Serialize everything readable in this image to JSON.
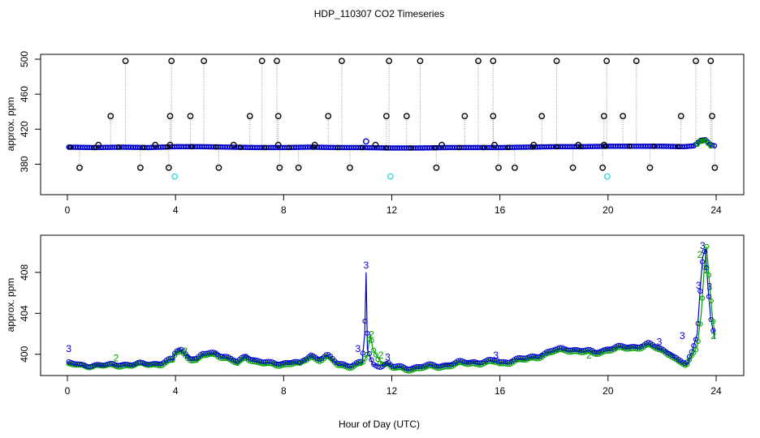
{
  "figure": {
    "title": "HDP_110307  CO2 Timeseries",
    "xlabel": "Hour of Day (UTC)"
  },
  "colors": {
    "axis": "#000000",
    "outlier": "#000000",
    "series_blue": "#0000cc",
    "series_green": "#00a000",
    "series_cyan": "#40d8d8",
    "droplines": "#9a9a9a"
  },
  "chart_data": [
    {
      "type": "scatter",
      "ylabel": "approx. ppm",
      "xlim": [
        0,
        24
      ],
      "ylim": [
        360,
        500
      ],
      "x_ticks": [
        "0",
        "4",
        "8",
        "12",
        "16",
        "20",
        "24"
      ],
      "x_tick_values": [
        0,
        4,
        8,
        12,
        16,
        20,
        24
      ],
      "y_ticks": [
        "380",
        "420",
        "460",
        "500"
      ],
      "y_tick_values": [
        380,
        420,
        460,
        500
      ],
      "grid": false,
      "baseline": [
        [
          0,
          399.5
        ],
        [
          1,
          399
        ],
        [
          2,
          399.5
        ],
        [
          3,
          399
        ],
        [
          4,
          400
        ],
        [
          5,
          400
        ],
        [
          6,
          399.5
        ],
        [
          7,
          399
        ],
        [
          8,
          399
        ],
        [
          9,
          399.5
        ],
        [
          10,
          399
        ],
        [
          11,
          399
        ],
        [
          12,
          398.5
        ],
        [
          13,
          398.5
        ],
        [
          14,
          399
        ],
        [
          15,
          399
        ],
        [
          16,
          399
        ],
        [
          17,
          399.5
        ],
        [
          18,
          400
        ],
        [
          19,
          400
        ],
        [
          20,
          400.5
        ],
        [
          21,
          400.5
        ],
        [
          22,
          400.5
        ],
        [
          22.8,
          400
        ],
        [
          23.2,
          401
        ],
        [
          23.4,
          407
        ],
        [
          23.6,
          408
        ],
        [
          23.8,
          402
        ],
        [
          23.95,
          401
        ]
      ],
      "outliers_high": [
        2.15,
        3.85,
        5.05,
        7.2,
        7.75,
        10.15,
        11.9,
        13.05,
        15.2,
        15.75,
        18.1,
        19.95,
        21.05,
        23.25,
        23.8
      ],
      "outliers_mid": [
        1.6,
        3.8,
        4.55,
        6.75,
        7.8,
        9.65,
        11.8,
        12.55,
        14.7,
        15.75,
        17.55,
        19.85,
        20.55,
        22.7,
        23.85
      ],
      "outliers_low": [
        0.45,
        2.7,
        3.75,
        5.6,
        7.85,
        8.55,
        10.45,
        13.65,
        15.95,
        16.55,
        18.7,
        19.8,
        21.55,
        23.95
      ],
      "outliers_small": [
        1.15,
        3.25,
        3.8,
        6.15,
        7.8,
        9.15,
        11.4,
        13.85,
        15.8,
        17.25,
        18.9,
        19.85
      ],
      "blue_peak": {
        "x": 11.05,
        "y": 406
      },
      "cyan_points": [
        [
          3.97,
          366
        ],
        [
          11.95,
          366
        ],
        [
          19.97,
          366
        ]
      ]
    },
    {
      "type": "line",
      "ylabel": "approx. ppm",
      "xlim": [
        0,
        24
      ],
      "ylim": [
        398,
        411
      ],
      "x_ticks": [
        "0",
        "4",
        "8",
        "12",
        "16",
        "20",
        "24"
      ],
      "x_tick_values": [
        0,
        4,
        8,
        12,
        16,
        20,
        24
      ],
      "y_ticks": [
        "400",
        "404",
        "408"
      ],
      "y_tick_values": [
        400,
        404,
        408
      ],
      "grid": false,
      "series": [
        {
          "values": [
            [
              0,
              399.2
            ],
            [
              0.5,
              398.9
            ],
            [
              1,
              399
            ],
            [
              1.5,
              398.9
            ],
            [
              2,
              399.1
            ],
            [
              2.5,
              399.0
            ],
            [
              3,
              399.1
            ],
            [
              3.5,
              399.2
            ],
            [
              3.9,
              399.5
            ],
            [
              4,
              400.3
            ],
            [
              4.2,
              400.5
            ],
            [
              4.5,
              399.8
            ],
            [
              4.8,
              399.5
            ],
            [
              5,
              400.0
            ],
            [
              5.5,
              400.2
            ],
            [
              6,
              399.6
            ],
            [
              6.3,
              399.2
            ],
            [
              6.6,
              399.9
            ],
            [
              7,
              399.4
            ],
            [
              7.5,
              399.1
            ],
            [
              8,
              399.2
            ],
            [
              8.4,
              399.3
            ],
            [
              8.6,
              399.0
            ],
            [
              9,
              400.0
            ],
            [
              9.3,
              399.6
            ],
            [
              9.6,
              399.9
            ],
            [
              10,
              399.1
            ],
            [
              10.5,
              399.0
            ],
            [
              10.9,
              399.2
            ],
            [
              11,
              402
            ],
            [
              11.05,
              408
            ],
            [
              11.1,
              400.5
            ],
            [
              11.3,
              399.0
            ],
            [
              11.6,
              398.9
            ],
            [
              11.9,
              399.1
            ],
            [
              12,
              398.8
            ],
            [
              12.5,
              398.7
            ],
            [
              13,
              398.8
            ],
            [
              13.5,
              398.9
            ],
            [
              14,
              399.0
            ],
            [
              14.5,
              399.2
            ],
            [
              15,
              399.3
            ],
            [
              15.5,
              399.3
            ],
            [
              15.9,
              399.4
            ],
            [
              16,
              399.2
            ],
            [
              16.5,
              399.5
            ],
            [
              17,
              399.6
            ],
            [
              17.5,
              400.0
            ],
            [
              18,
              400.4
            ],
            [
              18.5,
              400.6
            ],
            [
              19,
              400.4
            ],
            [
              19.5,
              400.2
            ],
            [
              20,
              400.6
            ],
            [
              20.5,
              400.7
            ],
            [
              21,
              400.8
            ],
            [
              21.5,
              401.0
            ],
            [
              22,
              400.5
            ],
            [
              22.3,
              400.2
            ],
            [
              22.6,
              399.4
            ],
            [
              22.9,
              399.0
            ],
            [
              23.1,
              400.2
            ],
            [
              23.3,
              402
            ],
            [
              23.4,
              406
            ],
            [
              23.5,
              409.5
            ],
            [
              23.6,
              410.3
            ],
            [
              23.7,
              406.5
            ],
            [
              23.8,
              403.5
            ],
            [
              23.95,
              401.5
            ]
          ]
        },
        {
          "values": [
            [
              0,
              399.0
            ],
            [
              0.5,
              398.8
            ],
            [
              1,
              398.9
            ],
            [
              1.5,
              398.8
            ],
            [
              2,
              398.9
            ],
            [
              2.5,
              398.9
            ],
            [
              3,
              399.0
            ],
            [
              3.5,
              399.0
            ],
            [
              3.9,
              399.3
            ],
            [
              4,
              400.1
            ],
            [
              4.2,
              400.3
            ],
            [
              4.5,
              399.6
            ],
            [
              4.8,
              399.3
            ],
            [
              5,
              399.8
            ],
            [
              5.5,
              400.0
            ],
            [
              6,
              399.4
            ],
            [
              6.3,
              399.0
            ],
            [
              6.6,
              399.7
            ],
            [
              7,
              399.2
            ],
            [
              7.5,
              398.9
            ],
            [
              8,
              399.0
            ],
            [
              8.4,
              399.1
            ],
            [
              8.6,
              398.9
            ],
            [
              9,
              399.8
            ],
            [
              9.3,
              399.4
            ],
            [
              9.6,
              399.7
            ],
            [
              10,
              398.9
            ],
            [
              10.5,
              398.8
            ],
            [
              10.9,
              399.0
            ],
            [
              11,
              399.5
            ],
            [
              11.1,
              400.0
            ],
            [
              11.2,
              402.0
            ],
            [
              11.3,
              400.5
            ],
            [
              11.6,
              399.2
            ],
            [
              11.9,
              398.9
            ],
            [
              12,
              398.6
            ],
            [
              12.5,
              398.5
            ],
            [
              13,
              398.6
            ],
            [
              13.5,
              398.7
            ],
            [
              14,
              398.8
            ],
            [
              14.5,
              399.0
            ],
            [
              15,
              399.1
            ],
            [
              15.5,
              399.1
            ],
            [
              15.9,
              399.2
            ],
            [
              16,
              399.0
            ],
            [
              16.5,
              399.3
            ],
            [
              17,
              399.4
            ],
            [
              17.5,
              399.8
            ],
            [
              18,
              400.2
            ],
            [
              18.5,
              400.4
            ],
            [
              19,
              400.2
            ],
            [
              19.5,
              400.0
            ],
            [
              20,
              400.4
            ],
            [
              20.5,
              400.5
            ],
            [
              21,
              400.6
            ],
            [
              21.5,
              400.8
            ],
            [
              22,
              400.3
            ],
            [
              22.3,
              400.0
            ],
            [
              22.6,
              399.2
            ],
            [
              22.9,
              398.8
            ],
            [
              23.1,
              399.8
            ],
            [
              23.3,
              400.8
            ],
            [
              23.45,
              404
            ],
            [
              23.55,
              408
            ],
            [
              23.65,
              410.5
            ],
            [
              23.75,
              407
            ],
            [
              23.85,
              404
            ],
            [
              23.95,
              402
            ]
          ]
        }
      ],
      "labels_blue": [
        {
          "x": 0.05,
          "y": 400.2,
          "text": "3"
        },
        {
          "x": 10.75,
          "y": 400.2,
          "text": "3"
        },
        {
          "x": 11.05,
          "y": 408.4,
          "text": "3"
        },
        {
          "x": 11.85,
          "y": 399.4,
          "text": "3"
        },
        {
          "x": 15.85,
          "y": 399.6,
          "text": "3"
        },
        {
          "x": 21.9,
          "y": 400.9,
          "text": "3"
        },
        {
          "x": 22.75,
          "y": 401.5,
          "text": "3"
        },
        {
          "x": 23.35,
          "y": 406.4,
          "text": "3"
        },
        {
          "x": 23.5,
          "y": 410.3,
          "text": "3"
        },
        {
          "x": 23.75,
          "y": 406.3,
          "text": "3"
        }
      ],
      "labels_green": [
        {
          "x": 1.8,
          "y": 399.3,
          "text": "2"
        },
        {
          "x": 4.35,
          "y": 400.0,
          "text": "2"
        },
        {
          "x": 11.25,
          "y": 401.6,
          "text": "2"
        },
        {
          "x": 11.6,
          "y": 399.6,
          "text": "2"
        },
        {
          "x": 19.3,
          "y": 399.6,
          "text": "2"
        },
        {
          "x": 23.4,
          "y": 409.4,
          "text": "2"
        },
        {
          "x": 23.65,
          "y": 407.9,
          "text": "2"
        },
        {
          "x": 23.9,
          "y": 401.5,
          "text": "2"
        }
      ]
    }
  ]
}
